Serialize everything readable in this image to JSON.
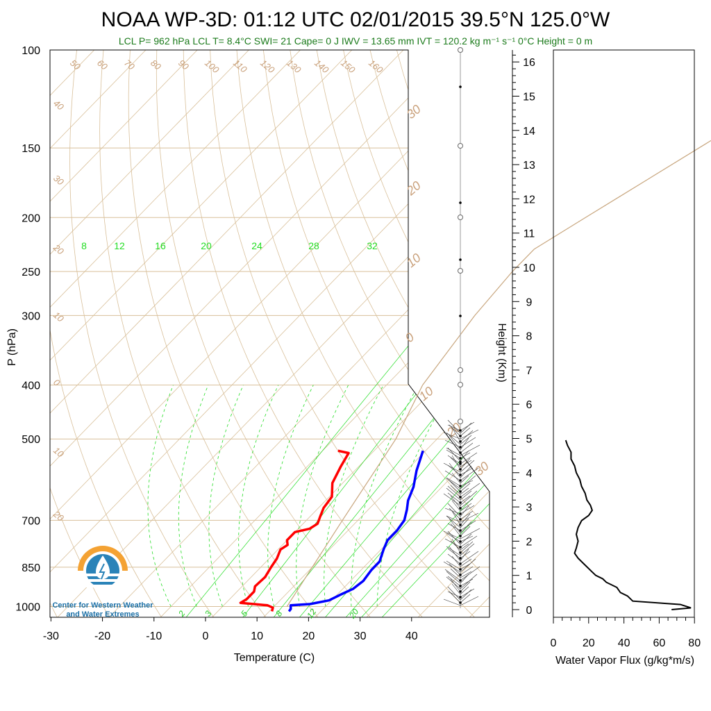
{
  "title": "NOAA WP-3D: 01:12 UTC 02/01/2015  39.5°N 125.0°W",
  "subtitle": "LCL P= 962 hPa  LCL T= 8.4°C  SWI= 21  Cape= 0 J  IWV = 13.65 mm  IVT = 120.2 kg m⁻¹ s⁻¹  0°C Height = 0 m",
  "logo": {
    "line1": "Center for Western Weather",
    "line2": "and Water Extremes",
    "icon": "water-drop-sun-icon"
  },
  "colors": {
    "temperature": "#ff0000",
    "dewpoint": "#0000ff",
    "isotherm": "#d8bf99",
    "mixing_ratio": "#22dd22",
    "parcel": "#c8a67e",
    "vapor_flux": "#000000"
  },
  "chart_data": [
    {
      "type": "line",
      "subtype": "skew-T log-P sounding",
      "title": "NOAA WP-3D: 01:12 UTC 02/01/2015  39.5°N 125.0°W",
      "xlabel": "Temperature (C)",
      "ylabel": "P (hPa)",
      "xlim": [
        -35,
        50
      ],
      "ylim": [
        1050,
        100
      ],
      "y_scale": "log",
      "x_ticks": [
        "-30",
        "-20",
        "-10",
        "0",
        "10",
        "20",
        "30",
        "40"
      ],
      "y_ticks": [
        "100",
        "150",
        "200",
        "250",
        "300",
        "400",
        "500",
        "700",
        "850",
        "1000"
      ],
      "y_tick_values": [
        100,
        150,
        200,
        250,
        300,
        400,
        500,
        700,
        850,
        1000
      ],
      "right_axis": {
        "label": "Height (Km)",
        "ticks": [
          "0",
          "1",
          "2",
          "3",
          "4",
          "5",
          "6",
          "7",
          "8",
          "9",
          "10",
          "11",
          "12",
          "13",
          "14",
          "15",
          "16"
        ]
      },
      "dry_adiabat_labels_top": [
        "50",
        "60",
        "70",
        "80",
        "90",
        "100",
        "110",
        "120",
        "130",
        "140",
        "150",
        "160"
      ],
      "dry_adiabat_labels_left": [
        "40",
        "30",
        "20",
        "10",
        "0",
        "10",
        "20"
      ],
      "dry_adiabat_labels_right": [
        "30",
        "20",
        "10",
        "0",
        "10",
        "20",
        "30"
      ],
      "mixing_ratio_labels_top": [
        "8",
        "12",
        "16",
        "20",
        "24",
        "28",
        "32"
      ],
      "mixing_ratio_labels_bottom": [
        "2",
        "3",
        "5",
        "8",
        "12",
        "20"
      ],
      "series": [
        {
          "name": "",
          "role": "temperature",
          "points": [
            [
              -7,
              525
            ],
            [
              -4.5,
              530
            ],
            [
              -3.5,
              560
            ],
            [
              -2,
              600
            ],
            [
              0.5,
              635
            ],
            [
              1,
              665
            ],
            [
              2,
              690
            ],
            [
              2.8,
              710
            ],
            [
              2.2,
              725
            ],
            [
              0,
              735
            ],
            [
              0,
              760
            ],
            [
              1,
              775
            ],
            [
              0.5,
              790
            ],
            [
              1.5,
              820
            ],
            [
              2,
              850
            ],
            [
              2.7,
              885
            ],
            [
              2.5,
              920
            ],
            [
              3.3,
              940
            ],
            [
              3.3,
              970
            ],
            [
              2.8,
              985
            ],
            [
              8.5,
              995
            ],
            [
              10,
              1005
            ],
            [
              10.5,
              1020
            ]
          ]
        },
        {
          "name": "",
          "role": "dewpoint",
          "points": [
            [
              9.5,
              525
            ],
            [
              12,
              570
            ],
            [
              14.5,
              610
            ],
            [
              16,
              645
            ],
            [
              17.5,
              670
            ],
            [
              19,
              700
            ],
            [
              19.5,
              730
            ],
            [
              19.5,
              760
            ],
            [
              20.5,
              790
            ],
            [
              22,
              830
            ],
            [
              22,
              860
            ],
            [
              22.5,
              900
            ],
            [
              22,
              930
            ],
            [
              20.8,
              950
            ],
            [
              19.5,
              975
            ],
            [
              16.5,
              990
            ],
            [
              13,
              995
            ],
            [
              13.7,
              1010
            ],
            [
              13.8,
              1020
            ]
          ]
        },
        {
          "name": "",
          "role": "parcel",
          "points": [
            [
              12.5,
              1000
            ],
            [
              7,
              700
            ],
            [
              2,
              500
            ],
            [
              -3,
              400
            ],
            [
              -6,
              300
            ],
            [
              -7,
              250
            ],
            [
              -7,
              228
            ],
            [
              -3,
              200
            ],
            [
              2,
              170
            ],
            [
              8,
              140
            ],
            [
              12,
              120
            ],
            [
              17,
              100
            ]
          ]
        }
      ]
    },
    {
      "type": "line",
      "xlabel": "Water Vapor Flux (g/kg*m/s)",
      "ylabel": "",
      "xlim": [
        0,
        80
      ],
      "ylim": [
        0,
        16.3
      ],
      "x_ticks": [
        "0",
        "20",
        "40",
        "60",
        "80"
      ],
      "series": [
        {
          "name": "",
          "points": [
            [
              67,
              0
            ],
            [
              78,
              0.05
            ],
            [
              72,
              0.15
            ],
            [
              45,
              0.25
            ],
            [
              42,
              0.4
            ],
            [
              38,
              0.5
            ],
            [
              36,
              0.65
            ],
            [
              30,
              0.8
            ],
            [
              28,
              0.9
            ],
            [
              24,
              1.0
            ],
            [
              22,
              1.1
            ],
            [
              18,
              1.3
            ],
            [
              14,
              1.5
            ],
            [
              12,
              1.65
            ],
            [
              13,
              1.8
            ],
            [
              14,
              2.0
            ],
            [
              13,
              2.2
            ],
            [
              14,
              2.4
            ],
            [
              16,
              2.6
            ],
            [
              20,
              2.75
            ],
            [
              22,
              2.9
            ],
            [
              21,
              3.05
            ],
            [
              19,
              3.2
            ],
            [
              18,
              3.4
            ],
            [
              16,
              3.6
            ],
            [
              15,
              3.8
            ],
            [
              13,
              4.0
            ],
            [
              12,
              4.2
            ],
            [
              10,
              4.4
            ],
            [
              10,
              4.6
            ],
            [
              8,
              4.8
            ],
            [
              7,
              4.95
            ]
          ]
        }
      ]
    }
  ]
}
